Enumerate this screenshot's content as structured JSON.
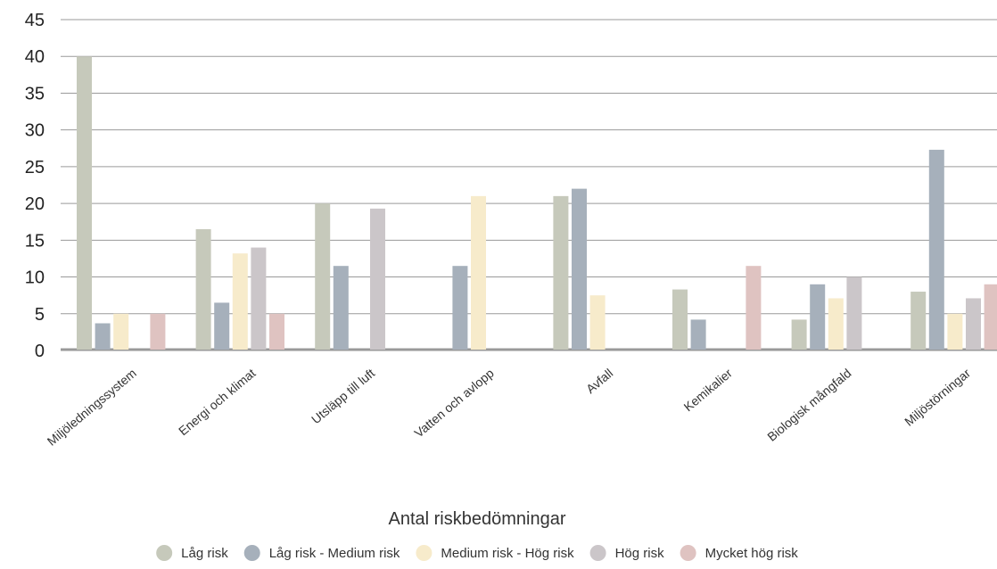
{
  "chart_data": {
    "type": "bar",
    "title": "",
    "xlabel": "Antal riskbedömningar",
    "ylabel": "",
    "ylim": [
      0,
      45
    ],
    "yticks": [
      0,
      5,
      10,
      15,
      20,
      25,
      30,
      35,
      40,
      45
    ],
    "grid": true,
    "legend_position": "bottom",
    "categories": [
      "Miljöledningssystem",
      "Energi och klimat",
      "Utsläpp till luft",
      "Vatten och avlopp",
      "Avfall",
      "Kemikalier",
      "Biologisk mångfald",
      "Miljöstörningar"
    ],
    "series": [
      {
        "name": "Låg risk",
        "color": "#c6c9bb",
        "values": [
          40,
          16.5,
          20,
          0,
          21,
          8.3,
          4.2,
          8
        ]
      },
      {
        "name": "Låg risk - Medium risk",
        "color": "#a6b0bb",
        "values": [
          3.7,
          6.5,
          11.5,
          11.5,
          22,
          4.2,
          9,
          27.3
        ]
      },
      {
        "name": "Medium risk - Hög risk",
        "color": "#f7ebcb",
        "values": [
          5,
          13.2,
          0,
          21,
          7.5,
          0,
          7.1,
          5
        ]
      },
      {
        "name": "Hög risk",
        "color": "#cbc6c9",
        "values": [
          0,
          14,
          19.3,
          0,
          0,
          0,
          10,
          7.1
        ]
      },
      {
        "name": "Mycket hög risk",
        "color": "#dfc3c1",
        "values": [
          5,
          5,
          0,
          0,
          0,
          11.5,
          0,
          9
        ]
      }
    ]
  }
}
